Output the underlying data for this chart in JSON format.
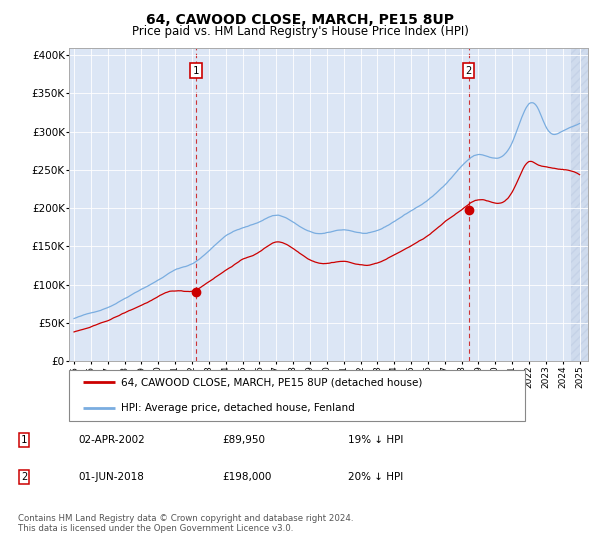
{
  "title": "64, CAWOOD CLOSE, MARCH, PE15 8UP",
  "subtitle": "Price paid vs. HM Land Registry's House Price Index (HPI)",
  "bg_color": "#dce6f5",
  "red_line_label": "64, CAWOOD CLOSE, MARCH, PE15 8UP (detached house)",
  "blue_line_label": "HPI: Average price, detached house, Fenland",
  "sale1_date": "02-APR-2002",
  "sale1_price": "£89,950",
  "sale1_hpi": "19% ↓ HPI",
  "sale2_date": "01-JUN-2018",
  "sale2_price": "£198,000",
  "sale2_hpi": "20% ↓ HPI",
  "footer": "Contains HM Land Registry data © Crown copyright and database right 2024.\nThis data is licensed under the Open Government Licence v3.0.",
  "ylim": [
    0,
    410000
  ],
  "yticks": [
    0,
    50000,
    100000,
    150000,
    200000,
    250000,
    300000,
    350000,
    400000
  ],
  "ytick_labels": [
    "£0",
    "£50K",
    "£100K",
    "£150K",
    "£200K",
    "£250K",
    "£300K",
    "£350K",
    "£400K"
  ],
  "xtick_years": [
    1995,
    1996,
    1997,
    1998,
    1999,
    2000,
    2001,
    2002,
    2003,
    2004,
    2005,
    2006,
    2007,
    2008,
    2009,
    2010,
    2011,
    2012,
    2013,
    2014,
    2015,
    2016,
    2017,
    2018,
    2019,
    2020,
    2021,
    2022,
    2023,
    2024,
    2025
  ],
  "sale1_x": 2002.25,
  "sale1_y": 89950,
  "sale2_x": 2018.42,
  "sale2_y": 198000,
  "red_color": "#cc0000",
  "blue_color": "#7aade0",
  "hatch_start": 2024.5,
  "xlim_left": 1994.7,
  "xlim_right": 2025.5
}
